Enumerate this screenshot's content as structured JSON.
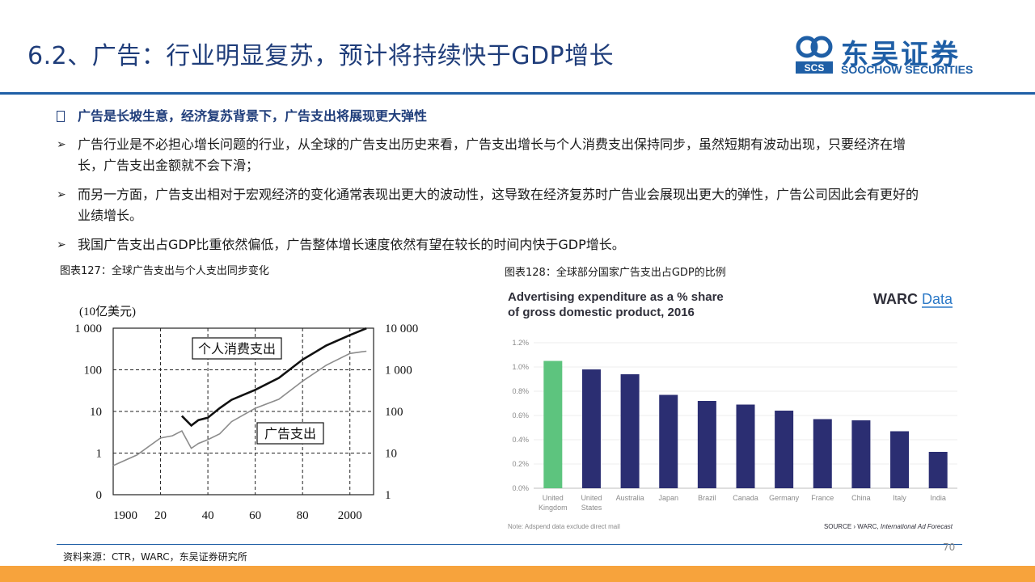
{
  "header": {
    "title": "6.2、广告：行业明显复苏，预计将持续快于GDP增长",
    "logo_cn": "东吴证券",
    "logo_en": "SOOCHOW SECURITIES",
    "logo_mark_text": "SCS"
  },
  "body": {
    "lead": "广告是长坡生意，经济复苏背景下，广告支出将展现更大弹性",
    "bullet_symbol": "➢",
    "bullets": [
      "广告行业是不必担心增长问题的行业，从全球的广告支出历史来看，广告支出增长与个人消费支出保持同步，虽然短期有波动出现，只要经济在增长，广告支出金额就不会下滑；",
      "而另一方面，广告支出相对于宏观经济的变化通常表现出更大的波动性，这导致在经济复苏时广告业会展现出更大的弹性，广告公司因此会有更好的业绩增长。",
      "我国广告支出占GDP比重依然偏低，广告整体增长速度依然有望在较长的时间内快于GDP增长。"
    ]
  },
  "figures": {
    "left_caption": "图表127：全球广告支出与个人支出同步变化",
    "right_caption": "图表128：全球部分国家广告支出占GDP的比例"
  },
  "chart_data": [
    {
      "type": "line",
      "unit_label": "(10亿美元)",
      "x_ticks": [
        "1900",
        "20",
        "40",
        "60",
        "80",
        "2000"
      ],
      "x_range": [
        1900,
        2010
      ],
      "left_axis_ticks": [
        "1 000",
        "100",
        "10",
        "1",
        "0"
      ],
      "right_axis_ticks": [
        "10 000",
        "1 000",
        "100",
        "10",
        "1"
      ],
      "log_scale": true,
      "grid": true,
      "series": [
        {
          "name": "个人消费支出",
          "axis": "right",
          "points": [
            [
              1929,
              78
            ],
            [
              1933,
              46
            ],
            [
              1936,
              62
            ],
            [
              1940,
              71
            ],
            [
              1945,
              120
            ],
            [
              1950,
              190
            ],
            [
              1960,
              330
            ],
            [
              1970,
              640
            ],
            [
              1980,
              1760
            ],
            [
              1990,
              3840
            ],
            [
              2000,
              6800
            ],
            [
              2007,
              9900
            ]
          ]
        },
        {
          "name": "广告支出",
          "axis": "left",
          "points": [
            [
              1900,
              0.5
            ],
            [
              1910,
              0.9
            ],
            [
              1920,
              2.3
            ],
            [
              1925,
              2.6
            ],
            [
              1929,
              3.4
            ],
            [
              1933,
              1.3
            ],
            [
              1936,
              1.7
            ],
            [
              1940,
              2.1
            ],
            [
              1945,
              2.9
            ],
            [
              1950,
              5.7
            ],
            [
              1960,
              11.9
            ],
            [
              1970,
              19.6
            ],
            [
              1980,
              53.5
            ],
            [
              1990,
              129
            ],
            [
              2000,
              247
            ],
            [
              2005,
              271
            ],
            [
              2007,
              280
            ]
          ]
        }
      ]
    },
    {
      "type": "bar",
      "title_line1": "Advertising expenditure as a % share",
      "title_line2": "of gross domestic product, 2016",
      "brand": "WARC",
      "brand_suffix": "Data",
      "categories": [
        [
          "United",
          "Kingdom"
        ],
        [
          "United",
          "States"
        ],
        [
          "Australia"
        ],
        [
          "Japan"
        ],
        [
          "Brazil"
        ],
        [
          "Canada"
        ],
        [
          "Germany"
        ],
        [
          "France"
        ],
        [
          "China"
        ],
        [
          "Italy"
        ],
        [
          "India"
        ]
      ],
      "values": [
        1.05,
        0.98,
        0.94,
        0.77,
        0.72,
        0.69,
        0.64,
        0.57,
        0.56,
        0.47,
        0.3
      ],
      "y_ticks": [
        "1.2%",
        "1.0%",
        "0.8%",
        "0.6%",
        "0.4%",
        "0.2%",
        "0.0%"
      ],
      "ylim": [
        0,
        1.2
      ],
      "highlight_color": "#5dc47e",
      "bar_color": "#2b2e72",
      "note": "Note: Adspend data exclude direct mail",
      "source_prefix": "SOURCE › WARC, ",
      "source_italic": "International Ad Forecast"
    }
  ],
  "footer": {
    "source": "资料来源：CTR，WARC，东吴证券研究所",
    "page": "70"
  }
}
